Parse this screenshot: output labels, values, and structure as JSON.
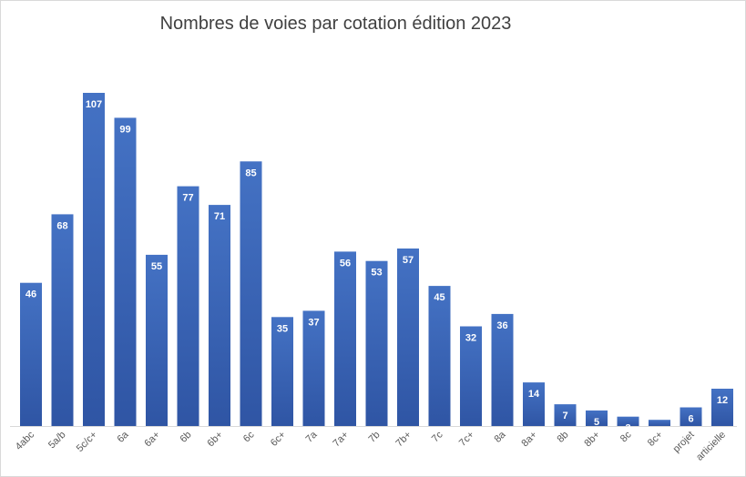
{
  "chart_data": {
    "type": "bar",
    "title": "Nombres de voies par cotation édition 2023",
    "xlabel": "",
    "ylabel": "",
    "categories": [
      "4abc",
      "5a/b",
      "5c/c+",
      "6a",
      "6a+",
      "6b",
      "6b+",
      "6c",
      "6c+",
      "7a",
      "7a+",
      "7b",
      "7b+",
      "7c",
      "7c+",
      "8a",
      "8a+",
      "8b",
      "8b+",
      "8c",
      "8c+",
      "projet",
      "articielle"
    ],
    "values": [
      46,
      68,
      107,
      99,
      55,
      77,
      71,
      85,
      35,
      37,
      56,
      53,
      57,
      45,
      32,
      36,
      14,
      7,
      5,
      3,
      2,
      6,
      12
    ],
    "ylim": [
      0,
      107
    ],
    "grid": false,
    "legend": "none",
    "data_labels": true,
    "bar_color": "#4472c4",
    "bar_color_dark": "#2f55a4",
    "label_color": "#ffffff",
    "tick_color": "#595959"
  }
}
